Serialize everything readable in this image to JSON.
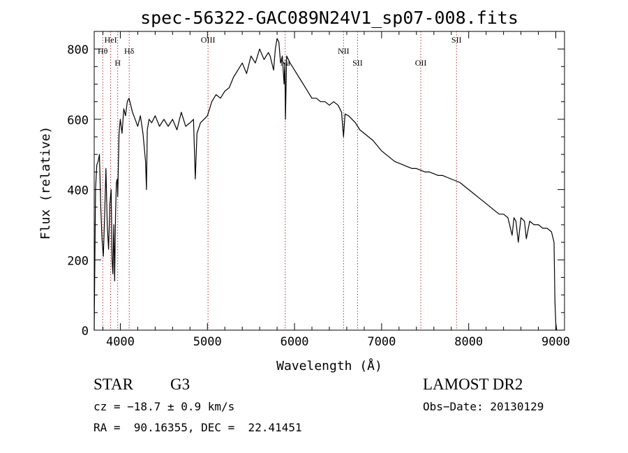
{
  "chart_data": {
    "type": "line",
    "title": "spec-56322-GAC089N24V1_sp07-008.fits",
    "xlabel": "Wavelength (Å)",
    "ylabel": "Flux (relative)",
    "xlim": [
      3700,
      9100
    ],
    "ylim": [
      0,
      850
    ],
    "x_ticks": [
      4000,
      5000,
      6000,
      7000,
      8000,
      9000
    ],
    "y_ticks": [
      0,
      200,
      400,
      600,
      800
    ],
    "grid": false,
    "line_color": "#000000",
    "marker_color": "#b03030",
    "series": [
      {
        "x": [
          3700,
          3715,
          3730,
          3745,
          3760,
          3775,
          3790,
          3805,
          3820,
          3835,
          3850,
          3865,
          3880,
          3895,
          3905,
          3915,
          3925,
          3935,
          3945,
          3955,
          3965,
          3970,
          3985,
          4000,
          4020,
          4040,
          4060,
          4080,
          4100,
          4120,
          4140,
          4170,
          4200,
          4230,
          4260,
          4290,
          4300,
          4310,
          4330,
          4360,
          4400,
          4450,
          4500,
          4550,
          4600,
          4650,
          4700,
          4750,
          4800,
          4840,
          4861,
          4880,
          4920,
          4960,
          5000,
          5050,
          5100,
          5150,
          5200,
          5250,
          5300,
          5350,
          5400,
          5450,
          5500,
          5550,
          5600,
          5650,
          5700,
          5720,
          5740,
          5760,
          5780,
          5800,
          5820,
          5840,
          5860,
          5880,
          5890,
          5896,
          5910,
          5950,
          6000,
          6050,
          6100,
          6150,
          6200,
          6250,
          6300,
          6350,
          6400,
          6450,
          6500,
          6540,
          6563,
          6580,
          6620,
          6660,
          6700,
          6750,
          6800,
          6850,
          6900,
          6950,
          7000,
          7050,
          7100,
          7150,
          7200,
          7250,
          7300,
          7350,
          7400,
          7450,
          7500,
          7550,
          7600,
          7650,
          7700,
          7750,
          7800,
          7850,
          7900,
          7950,
          8000,
          8050,
          8100,
          8150,
          8200,
          8250,
          8300,
          8350,
          8400,
          8450,
          8498,
          8520,
          8542,
          8570,
          8600,
          8640,
          8662,
          8700,
          8750,
          8800,
          8850,
          8900,
          8950,
          8980,
          8990,
          9000,
          9010
        ],
        "y": [
          0,
          400,
          470,
          480,
          500,
          350,
          260,
          210,
          330,
          460,
          300,
          230,
          360,
          400,
          200,
          160,
          300,
          140,
          330,
          420,
          430,
          380,
          560,
          600,
          560,
          630,
          610,
          650,
          660,
          640,
          620,
          600,
          580,
          610,
          560,
          480,
          400,
          570,
          600,
          590,
          610,
          580,
          600,
          580,
          600,
          570,
          620,
          580,
          590,
          600,
          430,
          560,
          590,
          600,
          610,
          650,
          670,
          660,
          680,
          690,
          720,
          740,
          760,
          730,
          780,
          760,
          800,
          770,
          790,
          780,
          760,
          740,
          800,
          830,
          820,
          760,
          780,
          700,
          760,
          600,
          780,
          760,
          740,
          720,
          700,
          680,
          660,
          660,
          650,
          650,
          640,
          650,
          640,
          620,
          550,
          615,
          610,
          600,
          590,
          570,
          560,
          550,
          540,
          525,
          510,
          500,
          490,
          480,
          475,
          470,
          465,
          460,
          460,
          455,
          450,
          450,
          445,
          440,
          440,
          435,
          430,
          425,
          420,
          410,
          400,
          390,
          380,
          370,
          360,
          350,
          340,
          330,
          330,
          320,
          270,
          320,
          310,
          250,
          320,
          310,
          260,
          310,
          300,
          300,
          290,
          290,
          280,
          250,
          80,
          20,
          0
        ]
      }
    ],
    "line_markers": [
      {
        "x": 3798,
        "label": "Hθ",
        "row": 1
      },
      {
        "x": 3889,
        "label": "HeI",
        "row": 0
      },
      {
        "x": 3970,
        "label": "H",
        "row": 2
      },
      {
        "x": 4102,
        "label": "Hδ",
        "row": 1
      },
      {
        "x": 5007,
        "label": "OIII",
        "row": 0
      },
      {
        "x": 5893,
        "label": "Na",
        "row": 2
      },
      {
        "x": 6563,
        "label": "NII",
        "row": 1
      },
      {
        "x": 6724,
        "label": "SII",
        "row": 2
      },
      {
        "x": 7450,
        "label": "OII",
        "row": 2
      },
      {
        "x": 7860,
        "label": "SII",
        "row": 0
      }
    ]
  },
  "footer": {
    "object_class": "STAR",
    "subclass": "G3",
    "survey": "LAMOST DR2",
    "cz": "cz = −18.7 ± 0.9 km/s",
    "obs_date": "Obs−Date: 20130129",
    "coords": "RA =  90.16355, DEC =  22.41451"
  }
}
